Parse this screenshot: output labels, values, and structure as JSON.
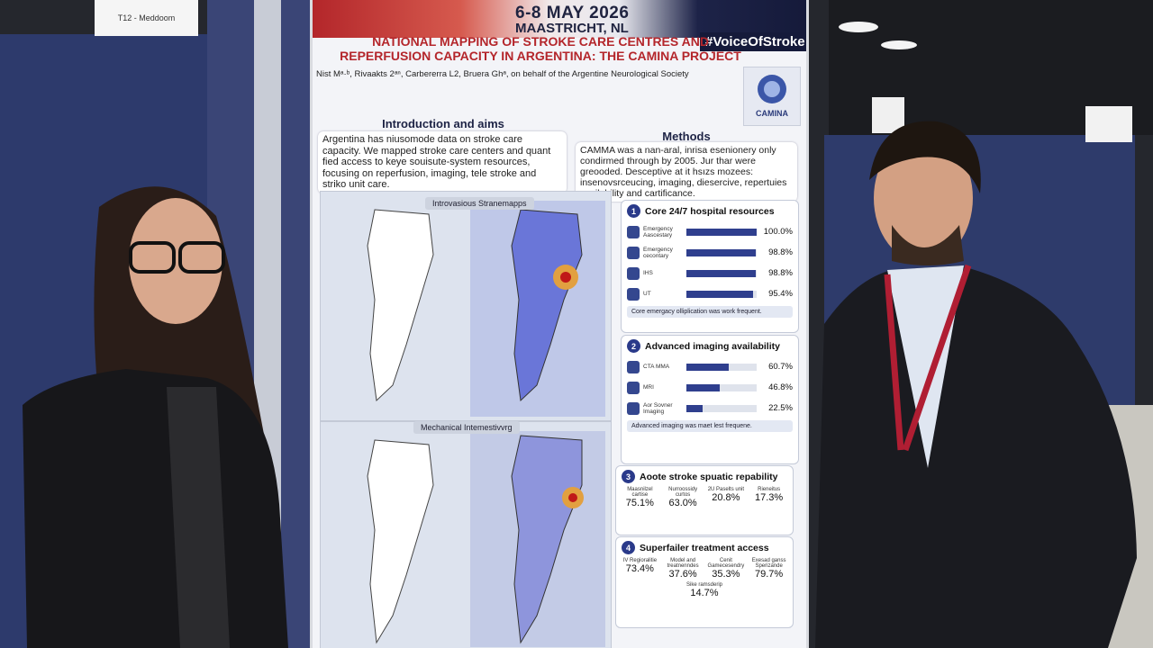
{
  "room_sign": "T12 - Meddoom",
  "header": {
    "dates": "6-8 MAY 2026",
    "location": "MAASTRICHT, NL",
    "hashtag": "#VoiceOfStroke"
  },
  "title": "NATIONAL MAPPING OF STROKE CARE CENTRES AND REPERFUSION CAPACITY IN ARGENTINA: THE CAMINA PROJECT",
  "authors": "Nist Mᵃ·ᵇ, Rivaakts 2ᵃⁿ, Carbererra L2, Bruera Ghᵃ, on behalf of the Argentine Neurological Society",
  "logo": "CAMINA",
  "intro": {
    "heading": "Introduction and aims",
    "text": "Argentina has niusomode data on stroke care capacity. We mapped stroke care centers and quant fied access to keye souisute-system resources, focusing on reperfusion, imaging, tele stroke and striko unit care."
  },
  "methods": {
    "heading": "Methods",
    "text": "CAMMA was a nan-aral, inrisa esenionery only condirmed through by 2005. Jur thar were greooded. Desceptive at it hsızs mozees: insenovsrceucing, imaging, diesercive, repertuies availability and cartificance."
  },
  "maps": [
    "Introvasious Stranemapps",
    "Mechanical Intemestivvrg"
  ],
  "sections": [
    {
      "number": "1",
      "heading": "Core 24/7 hospital resources",
      "items": [
        {
          "name": "Emergency Aascestary",
          "value": 100.0,
          "label": "100.0%"
        },
        {
          "name": "Emergency cecontary",
          "value": 98.8,
          "label": "98.8%"
        },
        {
          "name": "IHS",
          "value": 98.8,
          "label": "98.8%"
        },
        {
          "name": "UT",
          "value": 95.4,
          "label": "95.4%"
        }
      ],
      "note": "Core emergacy olliplication was work frequent."
    },
    {
      "number": "2",
      "heading": "Advanced imaging availability",
      "items": [
        {
          "name": "CTA MMA",
          "value": 60.7,
          "label": "60.7%"
        },
        {
          "name": "MRI",
          "value": 46.8,
          "label": "46.8%"
        },
        {
          "name": "Aor Sovner Imaging",
          "value": 22.5,
          "label": "22.5%"
        }
      ],
      "note": "Advanced imaging was maet lest frequene."
    },
    {
      "number": "3",
      "heading": "Aoote stroke spuatic repability",
      "tiles": [
        {
          "name": "Maasnilzel cartise",
          "label": "75.1%"
        },
        {
          "name": "Nurroossidy curtos",
          "label": "63.0%"
        },
        {
          "name": "2U Paselts unit",
          "label": "20.8%"
        },
        {
          "name": "Rieneitus",
          "label": "17.3%"
        }
      ]
    },
    {
      "number": "4",
      "heading": "Superfailer treatment access",
      "tiles": [
        {
          "name": "IV Regioralitie",
          "label": "73.4%"
        },
        {
          "name": "Model and treatnenndes",
          "label": "37.6%"
        },
        {
          "name": "Cenit Gamecesendry",
          "label": "35.3%"
        },
        {
          "name": "Exesad ganss Sperizande",
          "label": "79.7%"
        },
        {
          "name": "Sike ramsderip",
          "label": "14.7%"
        }
      ]
    }
  ]
}
